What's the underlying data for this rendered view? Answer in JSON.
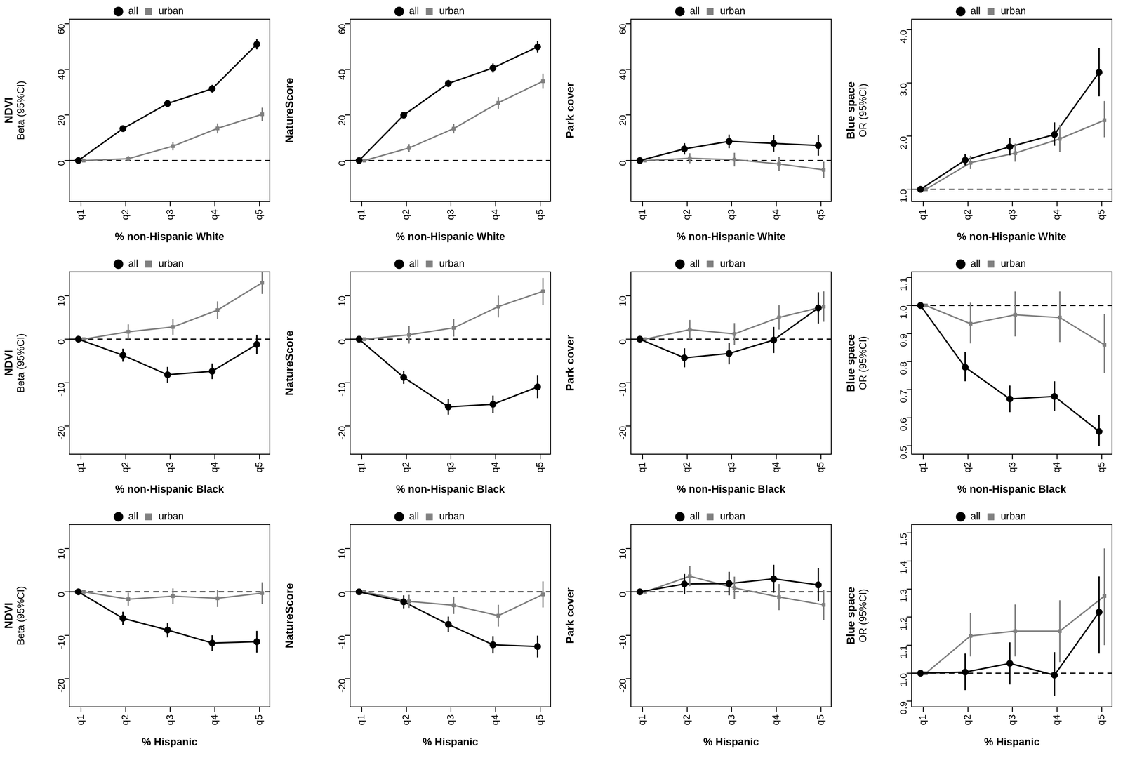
{
  "chart_data": [
    {
      "type": "line",
      "y_title": "NDVI",
      "y_subtitle": "Beta (95%CI)",
      "x_title": "% non-Hispanic White",
      "categories": [
        "q1",
        "q2",
        "q3",
        "q4",
        "q5"
      ],
      "ylim": [
        -18,
        62
      ],
      "yticks": [
        0,
        20,
        40,
        60
      ],
      "reference_line": 0,
      "legend": "top",
      "grid": false,
      "series": [
        {
          "name": "all",
          "color": "#000000",
          "marker": "circle",
          "values": [
            0,
            14,
            25,
            31.5,
            51
          ],
          "lower": [
            0,
            13,
            23.8,
            29.8,
            48.8
          ],
          "upper": [
            0,
            15,
            26.2,
            33.2,
            53.2
          ]
        },
        {
          "name": "urban",
          "color": "#808080",
          "marker": "square",
          "values": [
            0,
            0.8,
            6.3,
            14.1,
            20.3
          ],
          "lower": [
            0,
            -0.4,
            4.5,
            11.9,
            17.4
          ],
          "upper": [
            0,
            2,
            8.1,
            16.3,
            23.2
          ]
        }
      ]
    },
    {
      "type": "line",
      "y_title": "NatureScore",
      "x_title": "% non-Hispanic White",
      "categories": [
        "q1",
        "q2",
        "q3",
        "q4",
        "q5"
      ],
      "ylim": [
        -18,
        62
      ],
      "yticks": [
        0,
        20,
        40,
        60
      ],
      "reference_line": 0,
      "legend": "top",
      "grid": false,
      "series": [
        {
          "name": "all",
          "color": "#000000",
          "marker": "circle",
          "values": [
            0,
            19.9,
            33.8,
            40.6,
            49.9
          ],
          "lower": [
            0,
            18.6,
            32.2,
            38.6,
            47.4
          ],
          "upper": [
            0,
            21.2,
            35.4,
            42.6,
            52.4
          ]
        },
        {
          "name": "urban",
          "color": "#808080",
          "marker": "square",
          "values": [
            0,
            5.5,
            14,
            25.3,
            34.8
          ],
          "lower": [
            0,
            3.8,
            11.9,
            22.7,
            31.5
          ],
          "upper": [
            0,
            7.2,
            16.1,
            27.9,
            38.1
          ]
        }
      ]
    },
    {
      "type": "line",
      "y_title": "Park cover",
      "x_title": "% non-Hispanic White",
      "categories": [
        "q1",
        "q2",
        "q3",
        "q4",
        "q5"
      ],
      "ylim": [
        -18,
        62
      ],
      "yticks": [
        0,
        20,
        40,
        60
      ],
      "reference_line": 0,
      "legend": "top",
      "grid": false,
      "series": [
        {
          "name": "all",
          "color": "#000000",
          "marker": "circle",
          "values": [
            0,
            5.1,
            8.4,
            7.5,
            6.6
          ],
          "lower": [
            0,
            2.6,
            5.4,
            3.9,
            2.1
          ],
          "upper": [
            0,
            7.6,
            11.4,
            11.1,
            11.1
          ]
        },
        {
          "name": "urban",
          "color": "#808080",
          "marker": "square",
          "values": [
            0,
            1,
            0.4,
            -1.5,
            -4.1
          ],
          "lower": [
            0,
            -1.2,
            -2.6,
            -4.6,
            -7.7
          ],
          "upper": [
            0,
            3.2,
            3.4,
            1.6,
            -0.5
          ]
        }
      ]
    },
    {
      "type": "line",
      "y_title": "Blue space",
      "y_subtitle": "OR (95%CI)",
      "x_title": "% non-Hispanic White",
      "categories": [
        "q1",
        "q2",
        "q3",
        "q4",
        "q5"
      ],
      "ylim": [
        0.77,
        4.2
      ],
      "yticks": [
        {
          "value": 1,
          "label": "1.0"
        },
        {
          "value": 2,
          "label": "2.0"
        },
        {
          "value": 3,
          "label": "3.0"
        },
        {
          "value": 4,
          "label": "4.0"
        }
      ],
      "reference_line": 1,
      "legend": "top",
      "grid": false,
      "series": [
        {
          "name": "all",
          "color": "#000000",
          "marker": "circle",
          "values": [
            1,
            1.55,
            1.8,
            2.03,
            3.2
          ],
          "lower": [
            1,
            1.45,
            1.64,
            1.82,
            2.75
          ],
          "upper": [
            1,
            1.66,
            1.97,
            2.26,
            3.66
          ]
        },
        {
          "name": "urban",
          "color": "#808080",
          "marker": "square",
          "values": [
            1,
            1.5,
            1.68,
            1.95,
            2.3
          ],
          "lower": [
            1,
            1.38,
            1.52,
            1.7,
            1.98
          ],
          "upper": [
            1,
            1.63,
            1.86,
            2.21,
            2.66
          ]
        }
      ]
    },
    {
      "type": "line",
      "y_title": "NDVI",
      "y_subtitle": "Beta (95%CI)",
      "x_title": "% non-Hispanic Black",
      "categories": [
        "q1",
        "q2",
        "q3",
        "q4",
        "q5"
      ],
      "ylim": [
        -26.5,
        15.5
      ],
      "yticks": [
        -20,
        -10,
        0,
        10
      ],
      "reference_line": 0,
      "legend": "top",
      "grid": false,
      "series": [
        {
          "name": "all",
          "color": "#000000",
          "marker": "circle",
          "values": [
            0,
            -3.7,
            -8.2,
            -7.4,
            -1.2
          ],
          "lower": [
            0,
            -5.2,
            -10,
            -9.2,
            -3.4
          ],
          "upper": [
            0,
            -2.2,
            -6.4,
            -5.6,
            1
          ]
        },
        {
          "name": "urban",
          "color": "#808080",
          "marker": "square",
          "values": [
            0,
            1.7,
            2.8,
            6.7,
            13
          ],
          "lower": [
            0,
            0,
            1,
            4.7,
            10.4
          ],
          "upper": [
            0,
            3.4,
            4.6,
            8.7,
            15.6
          ]
        }
      ]
    },
    {
      "type": "line",
      "y_title": "NatureScore",
      "x_title": "% non-Hispanic Black",
      "categories": [
        "q1",
        "q2",
        "q3",
        "q4",
        "q5"
      ],
      "ylim": [
        -26.5,
        15.5
      ],
      "yticks": [
        -20,
        -10,
        0,
        10
      ],
      "reference_line": 0,
      "legend": "top",
      "grid": false,
      "series": [
        {
          "name": "all",
          "color": "#000000",
          "marker": "circle",
          "values": [
            0,
            -8.8,
            -15.6,
            -15,
            -11
          ],
          "lower": [
            0,
            -10.3,
            -17.4,
            -17,
            -13.6
          ],
          "upper": [
            0,
            -7.3,
            -13.8,
            -13,
            -8.4
          ]
        },
        {
          "name": "urban",
          "color": "#808080",
          "marker": "square",
          "values": [
            0,
            1,
            2.6,
            7.5,
            11
          ],
          "lower": [
            0,
            -1,
            0.6,
            5,
            7.9
          ],
          "upper": [
            0,
            3,
            4.6,
            10,
            14.1
          ]
        }
      ]
    },
    {
      "type": "line",
      "y_title": "Park cover",
      "x_title": "% non-Hispanic Black",
      "categories": [
        "q1",
        "q2",
        "q3",
        "q4",
        "q5"
      ],
      "ylim": [
        -26.5,
        15.5
      ],
      "yticks": [
        -20,
        -10,
        0,
        10
      ],
      "reference_line": 0,
      "legend": "top",
      "grid": false,
      "series": [
        {
          "name": "all",
          "color": "#000000",
          "marker": "circle",
          "values": [
            0,
            -4.3,
            -3.3,
            -0.2,
            7.2
          ],
          "lower": [
            0,
            -6.5,
            -5.8,
            -3.2,
            3.6
          ],
          "upper": [
            0,
            -2.1,
            -0.8,
            2.8,
            10.8
          ]
        },
        {
          "name": "urban",
          "color": "#808080",
          "marker": "square",
          "values": [
            0,
            2.2,
            1.2,
            5,
            7.5
          ],
          "lower": [
            0,
            0,
            -1.3,
            2.2,
            4
          ],
          "upper": [
            0,
            4.4,
            3.7,
            7.8,
            11
          ]
        }
      ]
    },
    {
      "type": "line",
      "y_title": "Blue space",
      "y_subtitle": "OR (95%CI)",
      "x_title": "% non-Hispanic Black",
      "categories": [
        "q1",
        "q2",
        "q3",
        "q4",
        "q5"
      ],
      "ylim": [
        0.47,
        1.12
      ],
      "yticks": [
        0.5,
        0.6,
        0.7,
        0.8,
        0.9,
        {
          "value": 1,
          "label": "1.0"
        },
        1.1
      ],
      "reference_line": 1,
      "legend": "top",
      "grid": false,
      "series": [
        {
          "name": "all",
          "color": "#000000",
          "marker": "circle",
          "values": [
            1,
            0.78,
            0.667,
            0.676,
            0.551
          ],
          "lower": [
            1,
            0.73,
            0.62,
            0.625,
            0.5
          ],
          "upper": [
            1,
            0.835,
            0.715,
            0.73,
            0.61
          ]
        },
        {
          "name": "urban",
          "color": "#808080",
          "marker": "square",
          "values": [
            1,
            0.935,
            0.967,
            0.957,
            0.86
          ],
          "lower": [
            1,
            0.865,
            0.89,
            0.87,
            0.76
          ],
          "upper": [
            1,
            1.01,
            1.05,
            1.05,
            0.97
          ]
        }
      ]
    },
    {
      "type": "line",
      "y_title": "NDVI",
      "y_subtitle": "Beta (95%CI)",
      "x_title": "% Hispanic",
      "categories": [
        "q1",
        "q2",
        "q3",
        "q4",
        "q5"
      ],
      "ylim": [
        -26.5,
        15.5
      ],
      "yticks": [
        -20,
        -10,
        0,
        10
      ],
      "reference_line": 0,
      "legend": "top",
      "grid": false,
      "series": [
        {
          "name": "all",
          "color": "#000000",
          "marker": "circle",
          "values": [
            0,
            -6.1,
            -8.8,
            -11.8,
            -11.5
          ],
          "lower": [
            0,
            -7.6,
            -10.5,
            -13.6,
            -14
          ],
          "upper": [
            0,
            -4.6,
            -7.1,
            -10,
            -9
          ]
        },
        {
          "name": "urban",
          "color": "#808080",
          "marker": "square",
          "values": [
            0,
            -1.7,
            -1,
            -1.5,
            -0.3
          ],
          "lower": [
            0,
            -3.2,
            -2.8,
            -3.5,
            -2.8
          ],
          "upper": [
            0,
            -0.2,
            0.8,
            0.5,
            2.2
          ]
        }
      ]
    },
    {
      "type": "line",
      "y_title": "NatureScore",
      "x_title": "% Hispanic",
      "categories": [
        "q1",
        "q2",
        "q3",
        "q4",
        "q5"
      ],
      "ylim": [
        -26.5,
        15.5
      ],
      "yticks": [
        -20,
        -10,
        0,
        10
      ],
      "reference_line": 0,
      "legend": "top",
      "grid": false,
      "series": [
        {
          "name": "all",
          "color": "#000000",
          "marker": "circle",
          "values": [
            0,
            -2.3,
            -7.5,
            -12.2,
            -12.6
          ],
          "lower": [
            0,
            -3.8,
            -9.3,
            -14.2,
            -15.1
          ],
          "upper": [
            0,
            -0.8,
            -5.7,
            -10.2,
            -10.1
          ]
        },
        {
          "name": "urban",
          "color": "#808080",
          "marker": "square",
          "values": [
            0,
            -2.2,
            -3.1,
            -5.5,
            -0.6
          ],
          "lower": [
            0,
            -3.7,
            -5.1,
            -8,
            -3.6
          ],
          "upper": [
            0,
            -0.7,
            -1.1,
            -3,
            2.4
          ]
        }
      ]
    },
    {
      "type": "line",
      "y_title": "Park cover",
      "x_title": "% Hispanic",
      "categories": [
        "q1",
        "q2",
        "q3",
        "q4",
        "q5"
      ],
      "ylim": [
        -26.5,
        15.5
      ],
      "yticks": [
        -20,
        -10,
        0,
        10
      ],
      "reference_line": 0,
      "legend": "top",
      "grid": false,
      "series": [
        {
          "name": "all",
          "color": "#000000",
          "marker": "circle",
          "values": [
            0,
            1.8,
            1.9,
            3,
            1.6
          ],
          "lower": [
            0,
            -0.5,
            -0.8,
            -0.2,
            -2.2
          ],
          "upper": [
            0,
            4.1,
            4.6,
            6.2,
            5.4
          ]
        },
        {
          "name": "urban",
          "color": "#808080",
          "marker": "square",
          "values": [
            0,
            3.6,
            0.9,
            -1.2,
            -3
          ],
          "lower": [
            0,
            1.3,
            -1.7,
            -4.2,
            -6.5
          ],
          "upper": [
            0,
            5.9,
            3.5,
            1.8,
            0.5
          ]
        }
      ]
    },
    {
      "type": "line",
      "y_title": "Blue space",
      "y_subtitle": "OR (95%CI)",
      "x_title": "% Hispanic",
      "categories": [
        "q1",
        "q2",
        "q3",
        "q4",
        "q5"
      ],
      "ylim": [
        0.88,
        1.53
      ],
      "yticks": [
        0.9,
        {
          "value": 1,
          "label": "1.0"
        },
        1.1,
        1.2,
        1.3,
        1.4,
        1.5
      ],
      "reference_line": 1,
      "legend": "top",
      "grid": false,
      "series": [
        {
          "name": "all",
          "color": "#000000",
          "marker": "circle",
          "values": [
            1,
            1.004,
            1.035,
            0.993,
            1.218
          ],
          "lower": [
            1,
            0.94,
            0.96,
            0.92,
            1.07
          ],
          "upper": [
            1,
            1.07,
            1.11,
            1.075,
            1.345
          ]
        },
        {
          "name": "urban",
          "color": "#808080",
          "marker": "square",
          "values": [
            1,
            1.133,
            1.15,
            1.15,
            1.275
          ],
          "lower": [
            1,
            1.06,
            1.06,
            1.04,
            1.1
          ],
          "upper": [
            1,
            1.215,
            1.245,
            1.26,
            1.445
          ]
        }
      ]
    }
  ]
}
